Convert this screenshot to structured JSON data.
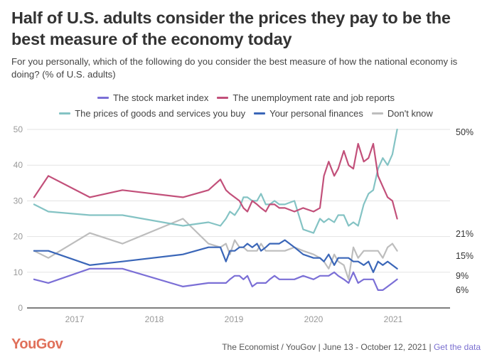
{
  "title": "Half of U.S. adults consider the prices they pay to be the best measure of the economy today",
  "subtitle": "For you personally, which of the following do you consider the best measure of how the national economy is doing? (% of U.S. adults)",
  "footer": {
    "logo": "YouGov",
    "source": "The Economist / YouGov | June 13 - October 12, 2021 |",
    "link_label": "Get the data"
  },
  "chart_data": {
    "type": "line",
    "title": "Half of U.S. adults consider the prices they pay to be the best measure of the economy today",
    "xlabel": "",
    "ylabel": "% of U.S. adults",
    "ylim": [
      0,
      50
    ],
    "yticks": [
      0,
      10,
      20,
      30,
      40,
      50
    ],
    "xticks": [
      {
        "value": 2017,
        "label": "2017"
      },
      {
        "value": 2018,
        "label": "2018"
      },
      {
        "value": 2019,
        "label": "2019"
      },
      {
        "value": 2020,
        "label": "2020"
      },
      {
        "value": 2021,
        "label": "2021"
      }
    ],
    "xlim": [
      2016.49,
      2021.78
    ],
    "grid": true,
    "legend_position": "top-center",
    "x": [
      2016.49,
      2016.67,
      2017.19,
      2017.6,
      2018.36,
      2018.68,
      2018.83,
      2018.9,
      2018.95,
      2019.01,
      2019.07,
      2019.12,
      2019.17,
      2019.23,
      2019.29,
      2019.34,
      2019.4,
      2019.45,
      2019.51,
      2019.57,
      2019.64,
      2019.76,
      2019.87,
      2020.0,
      2020.08,
      2020.13,
      2020.19,
      2020.26,
      2020.31,
      2020.38,
      2020.44,
      2020.5,
      2020.56,
      2020.63,
      2020.69,
      2020.75,
      2020.81,
      2020.87,
      2020.93,
      2020.99,
      2021.05,
      2021.12,
      2021.18,
      2021.24,
      2021.29,
      2021.36,
      2021.42,
      2021.48,
      2021.54,
      2021.61,
      2021.67,
      2021.69
    ],
    "series": [
      {
        "name": "The stock market index",
        "color": "#7b6fd6",
        "end_label": "6%",
        "values": [
          8,
          7,
          11,
          11,
          6,
          7,
          7,
          7,
          8,
          9,
          9,
          8,
          9,
          6,
          7,
          7,
          7,
          8,
          9,
          8,
          8,
          8,
          9,
          8,
          9,
          9,
          9,
          10,
          9,
          8,
          7,
          10,
          7,
          8,
          8,
          8,
          5,
          5,
          6,
          7,
          8,
          6,
          6,
          6,
          5,
          6,
          6,
          6,
          6,
          6,
          5,
          6
        ]
      },
      {
        "name": "The unemployment rate and job reports",
        "color": "#c2507a",
        "end_label": "21%",
        "values": [
          31,
          37,
          31,
          33,
          31,
          33,
          36,
          33,
          32,
          31,
          30,
          28,
          27,
          30,
          29,
          28,
          27,
          29,
          29,
          28,
          28,
          27,
          28,
          27,
          28,
          37,
          41,
          37,
          39,
          44,
          40,
          39,
          46,
          41,
          42,
          46,
          37,
          34,
          31,
          30,
          25,
          24,
          25,
          25,
          21,
          21,
          21,
          21,
          21,
          21,
          21,
          21
        ]
      },
      {
        "name": "The prices of goods and services you buy",
        "color": "#84c3c4",
        "end_label": "50%",
        "values": [
          29,
          27,
          26,
          26,
          23,
          24,
          23,
          25,
          27,
          26,
          28,
          31,
          31,
          30,
          30,
          32,
          29,
          29,
          30,
          29,
          29,
          30,
          22,
          21,
          25,
          24,
          25,
          24,
          26,
          26,
          23,
          24,
          23,
          29,
          32,
          33,
          39,
          42,
          40,
          43,
          50,
          50,
          50,
          50,
          50,
          50,
          50,
          50,
          50,
          50,
          50,
          50
        ]
      },
      {
        "name": "Your personal finances",
        "color": "#3a66b8",
        "end_label": "9%",
        "values": [
          16,
          16,
          12,
          13,
          15,
          17,
          17,
          13,
          16,
          16,
          17,
          17,
          18,
          17,
          18,
          16,
          17,
          18,
          18,
          18,
          19,
          17,
          15,
          14,
          14,
          13,
          15,
          12,
          14,
          14,
          14,
          13,
          13,
          12,
          13,
          10,
          13,
          12,
          13,
          12,
          11,
          10,
          11,
          11,
          9,
          9,
          9,
          9,
          9,
          9,
          9,
          9
        ]
      },
      {
        "name": "Don't know",
        "color": "#bdbdbd",
        "end_label": "15%",
        "values": [
          16,
          14,
          21,
          18,
          25,
          18,
          17,
          18,
          15,
          19,
          17,
          17,
          16,
          16,
          16,
          18,
          16,
          16,
          16,
          16,
          16,
          17,
          16,
          15,
          14,
          13,
          11,
          15,
          13,
          12,
          8,
          17,
          14,
          16,
          16,
          16,
          16,
          14,
          17,
          18,
          16,
          15,
          15,
          15,
          15,
          15,
          15,
          15,
          15,
          15,
          15,
          15
        ]
      }
    ]
  }
}
